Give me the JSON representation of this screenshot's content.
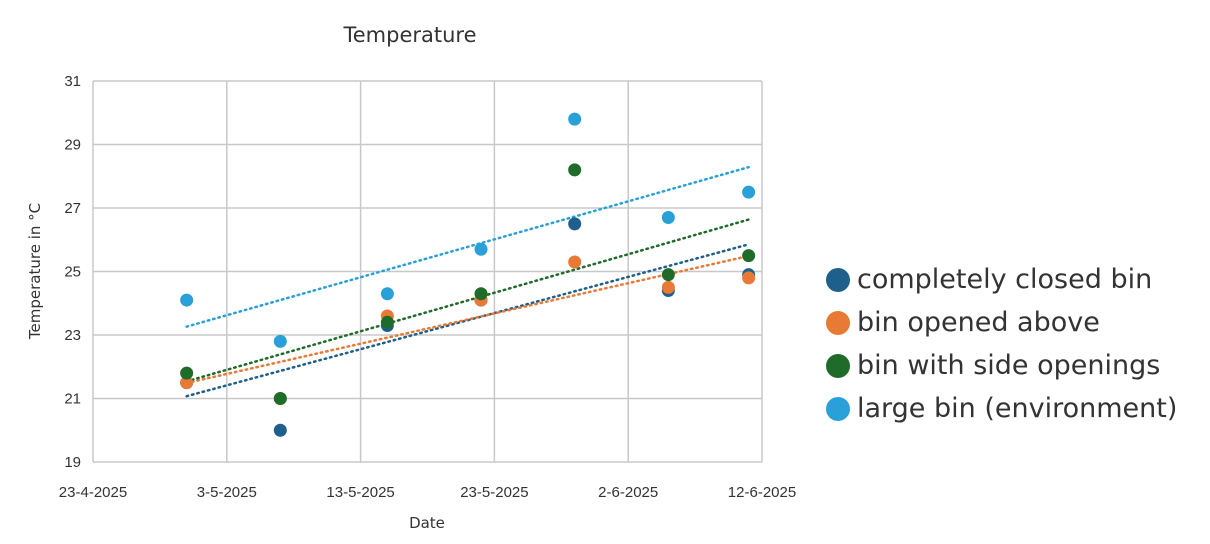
{
  "chart_data": {
    "type": "scatter",
    "title": "Temperature",
    "xlabel": "Date",
    "ylabel": "Temperature in °C",
    "x_ticks": [
      "23-4-2025",
      "3-5-2025",
      "13-5-2025",
      "23-5-2025",
      "2-6-2025",
      "12-6-2025"
    ],
    "y_ticks": [
      "19",
      "21",
      "23",
      "25",
      "27",
      "29",
      "31"
    ],
    "ylim": [
      19,
      31
    ],
    "xlim_days": [
      0,
      50
    ],
    "x_origin": "23-4-2025",
    "grid": true,
    "legend_position": "right",
    "trendline": "linear (dotted)",
    "x_dates": [
      "30-4-2025",
      "7-5-2025",
      "15-5-2025",
      "22-5-2025",
      "29-5-2025",
      "5-6-2025",
      "11-6-2025"
    ],
    "x_days": [
      7,
      14,
      22,
      29,
      36,
      43,
      49
    ],
    "series": [
      {
        "name": "completely closed bin",
        "color": "#1f5f8b",
        "values": [
          21.5,
          20.0,
          23.3,
          24.1,
          26.5,
          24.4,
          24.9
        ]
      },
      {
        "name": "bin opened above",
        "color": "#e87a35",
        "values": [
          21.5,
          21.0,
          23.6,
          24.1,
          25.3,
          24.5,
          24.8
        ]
      },
      {
        "name": "bin with side openings",
        "color": "#1e6b2a",
        "values": [
          21.8,
          21.0,
          23.4,
          24.3,
          28.2,
          24.9,
          25.5
        ]
      },
      {
        "name": "large bin (environment)",
        "color": "#2aa0d8",
        "values": [
          24.1,
          22.8,
          24.3,
          25.7,
          29.8,
          26.7,
          27.5
        ]
      }
    ]
  }
}
